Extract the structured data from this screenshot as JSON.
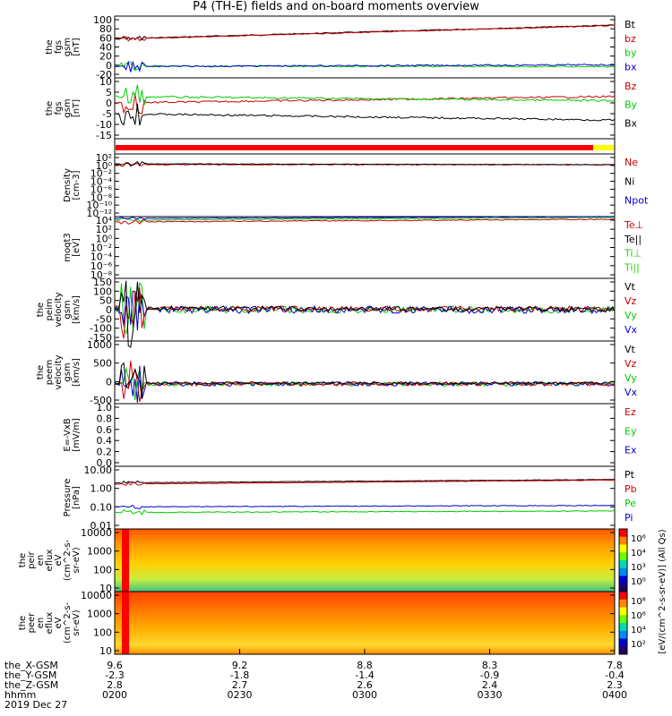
{
  "title": "P4 (TH-E) fields and on-board moments overview",
  "colors": {
    "black": "#000000",
    "red": "#cc0000",
    "green": "#00cc00",
    "blue": "#0000cc",
    "lime": "#33cc00"
  },
  "panels": [
    {
      "id": "fgs-top",
      "ylabel": [
        "the",
        "fgs",
        "gsm",
        "[nT]"
      ],
      "yticks": [
        "100",
        "80",
        "60",
        "40",
        "20",
        "0",
        "-20"
      ],
      "legend": [
        {
          "text": "Bt",
          "color": "black"
        },
        {
          "text": "bz",
          "color": "red"
        },
        {
          "text": "by",
          "color": "green"
        },
        {
          "text": "bx",
          "color": "blue"
        }
      ]
    },
    {
      "id": "fgs-bottom",
      "ylabel": [
        "the",
        "fgs",
        "gsm",
        "[nT]"
      ],
      "yticks": [
        "10",
        "5",
        "0",
        "-5",
        "-10",
        "-15"
      ],
      "legend": [
        {
          "text": "Bz",
          "color": "red"
        },
        {
          "text": "By",
          "color": "green"
        },
        {
          "text": "Bx",
          "color": "black"
        }
      ]
    },
    {
      "id": "density",
      "ylabel": [
        "Density",
        "[cm-3]"
      ],
      "yticks": [
        "10²",
        "10⁰",
        "10⁻²",
        "10⁻⁴",
        "10⁻⁶",
        "10⁻⁸",
        "10⁻¹⁰",
        "10⁻¹²"
      ],
      "legend": [
        {
          "text": "Ne",
          "color": "red"
        },
        {
          "text": "Ni",
          "color": "black"
        },
        {
          "text": "Npot",
          "color": "blue"
        }
      ]
    },
    {
      "id": "temp",
      "ylabel": [
        "moqt3",
        "[eV]"
      ],
      "yticks": [
        "10⁴",
        "10²",
        "10⁰",
        "10⁻²",
        "10⁻⁴",
        "10⁻⁶",
        "10⁻⁸"
      ],
      "legend": [
        {
          "text": "Te⊥",
          "color": "red"
        },
        {
          "text": "Te||",
          "color": "black"
        },
        {
          "text": "Ti⊥",
          "color": "lime"
        },
        {
          "text": "Ti||",
          "color": "lime"
        }
      ]
    },
    {
      "id": "peim-vel",
      "ylabel": [
        "the",
        "peim",
        "velocity",
        "gsm",
        "[km/s]"
      ],
      "yticks": [
        "150",
        "100",
        "50",
        "0",
        "-50",
        "-100",
        "-150"
      ],
      "legend": [
        {
          "text": "Vt",
          "color": "black"
        },
        {
          "text": "Vz",
          "color": "red"
        },
        {
          "text": "Vy",
          "color": "green"
        },
        {
          "text": "Vx",
          "color": "blue"
        }
      ]
    },
    {
      "id": "peem-vel",
      "ylabel": [
        "the",
        "peem",
        "velocity",
        "gsm",
        "[km/s]"
      ],
      "yticks": [
        "1000",
        "500",
        "0",
        "-500"
      ],
      "legend": [
        {
          "text": "Vt",
          "color": "black"
        },
        {
          "text": "Vz",
          "color": "red"
        },
        {
          "text": "Vy",
          "color": "green"
        },
        {
          "text": "Vx",
          "color": "blue"
        }
      ]
    },
    {
      "id": "efield",
      "ylabel": [
        "E=-VxB",
        "[mV/m]"
      ],
      "yticks": [
        "1.0",
        "0.8",
        "0.6",
        "0.4",
        "0.2",
        "0.0"
      ],
      "legend": [
        {
          "text": "Ez",
          "color": "red"
        },
        {
          "text": "Ey",
          "color": "green"
        },
        {
          "text": "Ex",
          "color": "blue"
        }
      ]
    },
    {
      "id": "pressure",
      "ylabel": [
        "Pressure",
        "[nPa]"
      ],
      "yticks": [
        "10.00",
        "1.00",
        "0.10",
        "0.01"
      ],
      "legend": [
        {
          "text": "Pt",
          "color": "black"
        },
        {
          "text": "Pb",
          "color": "red"
        },
        {
          "text": "Pe",
          "color": "green"
        },
        {
          "text": "Pi",
          "color": "blue"
        }
      ]
    },
    {
      "id": "peir-spec",
      "ylabel": [
        "the",
        "peir",
        "en",
        "eflux",
        "eV",
        "(cm^2-s-",
        "sr-eV)"
      ],
      "yticks": [
        "10000",
        "1000",
        "100",
        "10"
      ],
      "legend": []
    },
    {
      "id": "peer-spec",
      "ylabel": [
        "the",
        "peer",
        "en",
        "eflux",
        "eV",
        "(cm^2-s-",
        "sr-eV)"
      ],
      "yticks": [
        "10000",
        "1000",
        "100",
        "10"
      ],
      "legend": []
    }
  ],
  "colorbar": {
    "label": "[eV/(cm^2-s-sr-eV)] (All Qs)",
    "top_ticks": [
      "10⁶",
      "10⁴",
      "10³",
      "10⁰"
    ],
    "bottom_ticks": [
      "10⁸",
      "10⁶",
      "10⁴",
      "10²"
    ]
  },
  "xaxis": {
    "row_labels": [
      "the_X-GSM",
      "the_Y-GSM",
      "the_Z-GSM",
      "hhmm",
      "2019 Dec 27"
    ],
    "ticks": [
      {
        "x": "9.6",
        "y": "-2.3",
        "z": "2.8",
        "t": "0200"
      },
      {
        "x": "9.2",
        "y": "-1.8",
        "z": "2.7",
        "t": "0230"
      },
      {
        "x": "8.8",
        "y": "-1.4",
        "z": "2.6",
        "t": "0300"
      },
      {
        "x": "8.3",
        "y": "-0.9",
        "z": "2.4",
        "t": "0330"
      },
      {
        "x": "7.8",
        "y": "-0.4",
        "z": "2.3",
        "t": "0400"
      }
    ]
  },
  "chart_data": {
    "type": "line",
    "title": "P4 (TH-E) fields and on-board moments overview",
    "x": [
      "0200",
      "0230",
      "0300",
      "0330",
      "0400"
    ],
    "series": [
      {
        "name": "Bt",
        "panel": "fgs-top",
        "values": [
          58,
          64,
          70,
          78,
          88
        ]
      },
      {
        "name": "bz",
        "panel": "fgs-top",
        "values": [
          57,
          63,
          69,
          77,
          87
        ]
      },
      {
        "name": "by",
        "panel": "fgs-top",
        "values": [
          -5,
          -4,
          -4,
          -3,
          -3
        ]
      },
      {
        "name": "bx",
        "panel": "fgs-top",
        "values": [
          -3,
          -3,
          -4,
          -3,
          2
        ]
      },
      {
        "name": "Bz",
        "panel": "fgs-bottom",
        "values": [
          0,
          1,
          2,
          2,
          3
        ]
      },
      {
        "name": "By",
        "panel": "fgs-bottom",
        "values": [
          3,
          2,
          3,
          3,
          1
        ]
      },
      {
        "name": "Bx",
        "panel": "fgs-bottom",
        "values": [
          -5,
          -3,
          -5,
          -6,
          -8
        ]
      },
      {
        "name": "Ne",
        "panel": "density",
        "values": [
          2,
          1,
          1,
          1,
          1
        ]
      },
      {
        "name": "Pt",
        "panel": "pressure",
        "values": [
          2.0,
          2.1,
          2.3,
          2.6,
          3.0
        ]
      },
      {
        "name": "Pb",
        "panel": "pressure",
        "values": [
          1.7,
          1.9,
          2.0,
          2.3,
          2.8
        ]
      },
      {
        "name": "Pe",
        "panel": "pressure",
        "values": [
          0.1,
          0.1,
          0.12,
          0.13,
          0.12
        ]
      },
      {
        "name": "Pi",
        "panel": "pressure",
        "values": [
          0.05,
          0.05,
          0.06,
          0.06,
          0.06
        ]
      }
    ]
  }
}
